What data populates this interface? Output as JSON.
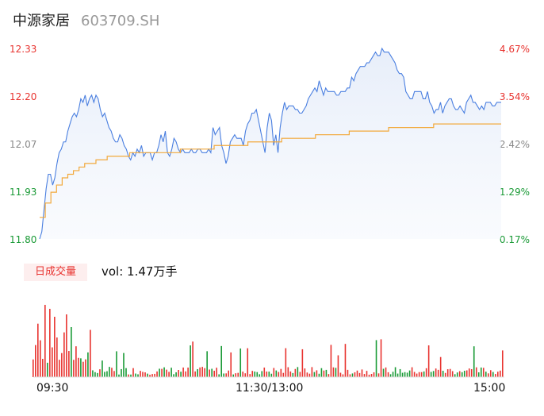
{
  "header": {
    "name": "中源家居",
    "code": "603709.SH"
  },
  "price_axis": [
    "12.33",
    "12.20",
    "12.07",
    "11.93",
    "11.80"
  ],
  "pct_axis": [
    "4.67%",
    "3.54%",
    "2.42%",
    "1.29%",
    "0.17%"
  ],
  "volume": {
    "badge": "日成交量",
    "label": "vol: 1.47万手"
  },
  "time_axis": [
    "09:30",
    "11:30/13:00",
    "15:00"
  ],
  "colors": {
    "up": "#e8332f",
    "down": "#1a9a36",
    "price_line": "#4a7fe0",
    "avg_line": "#f2a93b"
  },
  "chart_data": {
    "type": "line",
    "ylim": [
      11.8,
      12.33
    ],
    "pct_ylim": [
      0.17,
      4.67
    ],
    "x_range": [
      "09:30",
      "15:00"
    ],
    "series": [
      {
        "values": [
          11.8,
          11.82,
          11.88,
          11.94,
          11.98,
          11.98,
          11.95,
          11.97,
          12.01,
          12.04,
          12.05,
          12.07,
          12.07,
          12.1,
          12.12,
          12.14,
          12.15,
          12.14,
          12.16,
          12.19,
          12.18,
          12.2,
          12.17,
          12.19,
          12.2,
          12.18,
          12.2,
          12.19,
          12.16,
          12.14,
          12.15,
          12.13,
          12.11,
          12.1,
          12.08,
          12.07,
          12.07,
          12.09,
          12.08,
          12.06,
          12.05,
          12.03,
          12.02,
          12.04,
          12.03,
          12.05,
          12.04,
          12.06,
          12.03,
          12.04,
          12.04,
          12.04,
          12.02,
          12.04,
          12.04,
          12.06,
          12.09,
          12.07,
          12.1,
          12.04,
          12.03,
          12.05,
          12.08,
          12.07,
          12.05,
          12.04,
          12.05,
          12.04,
          12.04,
          12.04,
          12.05,
          12.04,
          12.04,
          12.05,
          12.05,
          12.04,
          12.04,
          12.04,
          12.05,
          12.04,
          12.11,
          12.09,
          12.1,
          12.11,
          12.06,
          12.04,
          12.01,
          12.03,
          12.07,
          12.08,
          12.09,
          12.08,
          12.08,
          12.08,
          12.06,
          12.1,
          12.12,
          12.13,
          12.15,
          12.15,
          12.16,
          12.13,
          12.1,
          12.07,
          12.04,
          12.11,
          12.15,
          12.13,
          12.06,
          12.09,
          12.04,
          12.11,
          12.15,
          12.18,
          12.16,
          12.17,
          12.17,
          12.17,
          12.16,
          12.16,
          12.15,
          12.15,
          12.16,
          12.17,
          12.19,
          12.2,
          12.21,
          12.22,
          12.21,
          12.24,
          12.22,
          12.2,
          12.22,
          12.21,
          12.21,
          12.21,
          12.21,
          12.2,
          12.2,
          12.21,
          12.21,
          12.21,
          12.22,
          12.22,
          12.25,
          12.24,
          12.26,
          12.27,
          12.28,
          12.28,
          12.28,
          12.29,
          12.29,
          12.3,
          12.31,
          12.32,
          12.31,
          12.31,
          12.33,
          12.32,
          12.32,
          12.32,
          12.31,
          12.3,
          12.29,
          12.27,
          12.26,
          12.26,
          12.25,
          12.21,
          12.2,
          12.19,
          12.19,
          12.21,
          12.21,
          12.21,
          12.21,
          12.19,
          12.19,
          12.21,
          12.18,
          12.17,
          12.15,
          12.16,
          12.16,
          12.18,
          12.15,
          12.17,
          12.18,
          12.19,
          12.19,
          12.17,
          12.16,
          12.16,
          12.17,
          12.16,
          12.15,
          12.18,
          12.19,
          12.2,
          12.18,
          12.18,
          12.17,
          12.16,
          12.17,
          12.16,
          12.18,
          12.18,
          12.18,
          12.17,
          12.17,
          12.18,
          12.18,
          12.18
        ],
        "color": "#4a7fe0"
      },
      {
        "values": [
          11.86,
          11.9,
          11.93,
          11.95,
          11.97,
          11.98,
          11.99,
          12.0,
          12.01,
          12.01,
          12.02,
          12.02,
          12.03,
          12.03,
          12.03,
          12.03,
          12.04,
          12.04,
          12.04,
          12.04,
          12.04,
          12.04,
          12.04,
          12.04,
          12.04,
          12.05,
          12.05,
          12.05,
          12.05,
          12.05,
          12.05,
          12.06,
          12.06,
          12.06,
          12.06,
          12.06,
          12.06,
          12.07,
          12.07,
          12.07,
          12.07,
          12.07,
          12.07,
          12.08,
          12.08,
          12.08,
          12.08,
          12.08,
          12.08,
          12.09,
          12.09,
          12.09,
          12.09,
          12.09,
          12.09,
          12.1,
          12.1,
          12.1,
          12.1,
          12.1,
          12.1,
          12.1,
          12.11,
          12.11,
          12.11,
          12.11,
          12.11,
          12.11,
          12.11,
          12.11,
          12.12,
          12.12,
          12.12,
          12.12,
          12.12,
          12.12,
          12.12,
          12.12,
          12.12,
          12.12,
          12.12,
          12.12
        ],
        "color": "#f2a93b"
      }
    ]
  }
}
